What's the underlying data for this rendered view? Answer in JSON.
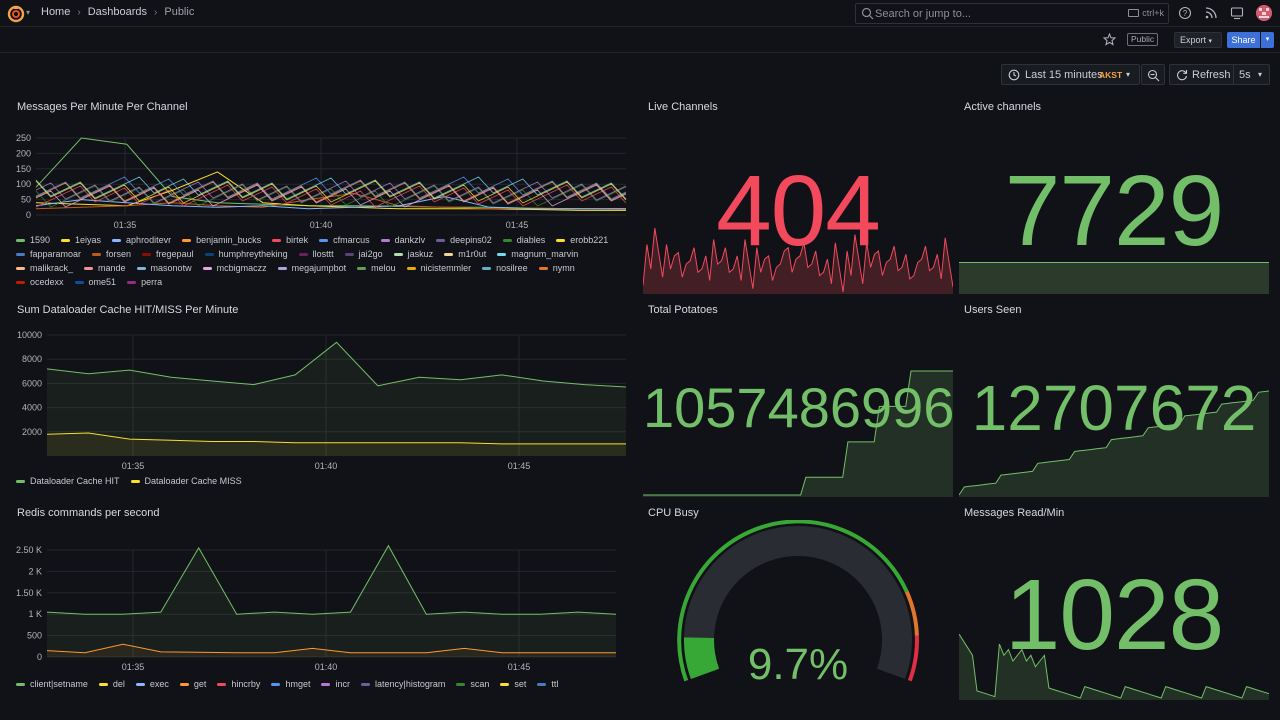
{
  "breadcrumb": {
    "home": "Home",
    "dashboards": "Dashboards",
    "current": "Public"
  },
  "search": {
    "placeholder": "Search or jump to...",
    "shortcut": "ctrl+k"
  },
  "toolbar": {
    "public_badge": "Public",
    "export_label": "Export",
    "share_label": "Share"
  },
  "time": {
    "range": "Last 15 minutes",
    "timezone": "AKST",
    "refresh_label": "Refresh",
    "interval": "5s"
  },
  "panels": {
    "messages_per_minute": {
      "title": "Messages Per Minute Per Channel",
      "legend": [
        {
          "name": "1590",
          "color": "#73bf69"
        },
        {
          "name": "1eiyas",
          "color": "#fade2a"
        },
        {
          "name": "aphroditevr",
          "color": "#8ab8ff"
        },
        {
          "name": "benjamin_bucks",
          "color": "#ff9830"
        },
        {
          "name": "birtek",
          "color": "#f2495c"
        },
        {
          "name": "cfmarcus",
          "color": "#5794f2"
        },
        {
          "name": "dankzlv",
          "color": "#b877d9"
        },
        {
          "name": "deepins02",
          "color": "#705da0"
        },
        {
          "name": "diables",
          "color": "#37872d"
        },
        {
          "name": "erobb221",
          "color": "#fade2a"
        },
        {
          "name": "fapparamoar",
          "color": "#447ebc"
        },
        {
          "name": "forsen",
          "color": "#c15c17"
        },
        {
          "name": "fregepaul",
          "color": "#890f02"
        },
        {
          "name": "humphreytheking",
          "color": "#0a437c"
        },
        {
          "name": "llosttt",
          "color": "#6d1f62"
        },
        {
          "name": "jai2go",
          "color": "#584477"
        },
        {
          "name": "jaskuz",
          "color": "#b7dbab"
        },
        {
          "name": "m1r0ut",
          "color": "#f4d598"
        },
        {
          "name": "magnum_marvin",
          "color": "#70dbed"
        },
        {
          "name": "malikrack_",
          "color": "#f9ba8f"
        },
        {
          "name": "mande",
          "color": "#f29191"
        },
        {
          "name": "masonotw",
          "color": "#82b5d8"
        },
        {
          "name": "mcbigmaczz",
          "color": "#e5a8e2"
        },
        {
          "name": "megajumpbot",
          "color": "#aea2e0"
        },
        {
          "name": "melou",
          "color": "#629e51"
        },
        {
          "name": "nicistemmler",
          "color": "#e5ac0e"
        },
        {
          "name": "nosilree",
          "color": "#64b0c8"
        },
        {
          "name": "nymn",
          "color": "#e0752d"
        },
        {
          "name": "ocedexx",
          "color": "#bf1b00"
        },
        {
          "name": "ome51",
          "color": "#0a50a1"
        },
        {
          "name": "perra",
          "color": "#962d82"
        }
      ]
    },
    "live_channels": {
      "title": "Live Channels",
      "value": "404",
      "color": "#f2495c"
    },
    "active_channels": {
      "title": "Active channels",
      "value": "7729",
      "color": "#73bf69"
    },
    "dataloader": {
      "title": "Sum Dataloader Cache HIT/MISS Per Minute",
      "legend": [
        {
          "name": "Dataloader Cache HIT",
          "color": "#73bf69"
        },
        {
          "name": "Dataloader Cache MISS",
          "color": "#fade2a"
        }
      ]
    },
    "total_potatoes": {
      "title": "Total Potatoes",
      "value": "1057486996",
      "color": "#73bf69"
    },
    "users_seen": {
      "title": "Users Seen",
      "value": "12707672",
      "color": "#73bf69"
    },
    "redis": {
      "title": "Redis commands per second",
      "legend": [
        {
          "name": "client|setname",
          "color": "#73bf69"
        },
        {
          "name": "del",
          "color": "#fade2a"
        },
        {
          "name": "exec",
          "color": "#8ab8ff"
        },
        {
          "name": "get",
          "color": "#ff9830"
        },
        {
          "name": "hincrby",
          "color": "#f2495c"
        },
        {
          "name": "hmget",
          "color": "#5794f2"
        },
        {
          "name": "incr",
          "color": "#b877d9"
        },
        {
          "name": "latency|histogram",
          "color": "#705da0"
        },
        {
          "name": "scan",
          "color": "#37872d"
        },
        {
          "name": "set",
          "color": "#fade2a"
        },
        {
          "name": "ttl",
          "color": "#447ebc"
        }
      ]
    },
    "cpu_busy": {
      "title": "CPU Busy",
      "value": "9.7%",
      "percent": 9.7,
      "color": "#73bf69"
    },
    "messages_read": {
      "title": "Messages Read/Min",
      "value": "1028",
      "color": "#73bf69"
    }
  },
  "chart_data": [
    {
      "type": "line",
      "title": "Messages Per Minute Per Channel",
      "ylim": [
        0,
        250
      ],
      "yticks": [
        "250",
        "200",
        "150",
        "100",
        "50",
        "0"
      ],
      "xticks": [
        "01:35",
        "01:40",
        "01:45"
      ],
      "series": [
        {
          "name": "1590",
          "values": [
            90,
            250,
            230,
            60,
            40,
            35,
            30,
            30,
            28,
            25,
            25,
            22,
            20,
            20
          ]
        },
        {
          "name": "1eiyas",
          "values": [
            40,
            35,
            30,
            80,
            140,
            40,
            30,
            25,
            20,
            20,
            20,
            18,
            15,
            15
          ]
        },
        {
          "name": "forsen",
          "values": [
            20,
            25,
            30,
            40,
            30,
            25,
            50,
            70,
            30,
            25,
            20,
            22,
            20,
            18
          ]
        },
        {
          "name": "aphroditevr",
          "values": [
            30,
            50,
            40,
            30,
            25,
            30,
            20,
            25,
            30,
            60,
            25,
            20,
            20,
            20
          ]
        }
      ]
    },
    {
      "type": "area",
      "title": "Sum Dataloader Cache HIT/MISS Per Minute",
      "ylim": [
        0,
        10000
      ],
      "yticks": [
        "10000",
        "8000",
        "6000",
        "4000",
        "2000"
      ],
      "xticks": [
        "01:35",
        "01:40",
        "01:45"
      ],
      "series": [
        {
          "name": "Dataloader Cache HIT",
          "values": [
            7200,
            6800,
            7100,
            6500,
            6200,
            5900,
            6700,
            9400,
            5800,
            6500,
            6300,
            6700,
            6200,
            5900,
            5700
          ]
        },
        {
          "name": "Dataloader Cache MISS",
          "values": [
            1800,
            1900,
            1400,
            1300,
            1200,
            1200,
            1100,
            1100,
            1100,
            1100,
            1100,
            1000,
            1000,
            1000,
            1000
          ]
        }
      ]
    },
    {
      "type": "area",
      "title": "Redis commands per second",
      "ylim": [
        0,
        2500
      ],
      "yticks": [
        "2.50 K",
        "2 K",
        "1.50 K",
        "1 K",
        "500",
        "0"
      ],
      "xticks": [
        "01:35",
        "01:40",
        "01:45"
      ],
      "series": [
        {
          "name": "client|setname",
          "values": [
            1050,
            1000,
            1000,
            1050,
            2550,
            1000,
            1050,
            1000,
            1050,
            2600,
            1000,
            1050,
            1000,
            1000,
            1050,
            1000
          ]
        },
        {
          "name": "get",
          "values": [
            150,
            100,
            300,
            120,
            110,
            100,
            100,
            200,
            100,
            100,
            100,
            200,
            100,
            100,
            100,
            100
          ]
        }
      ]
    }
  ]
}
